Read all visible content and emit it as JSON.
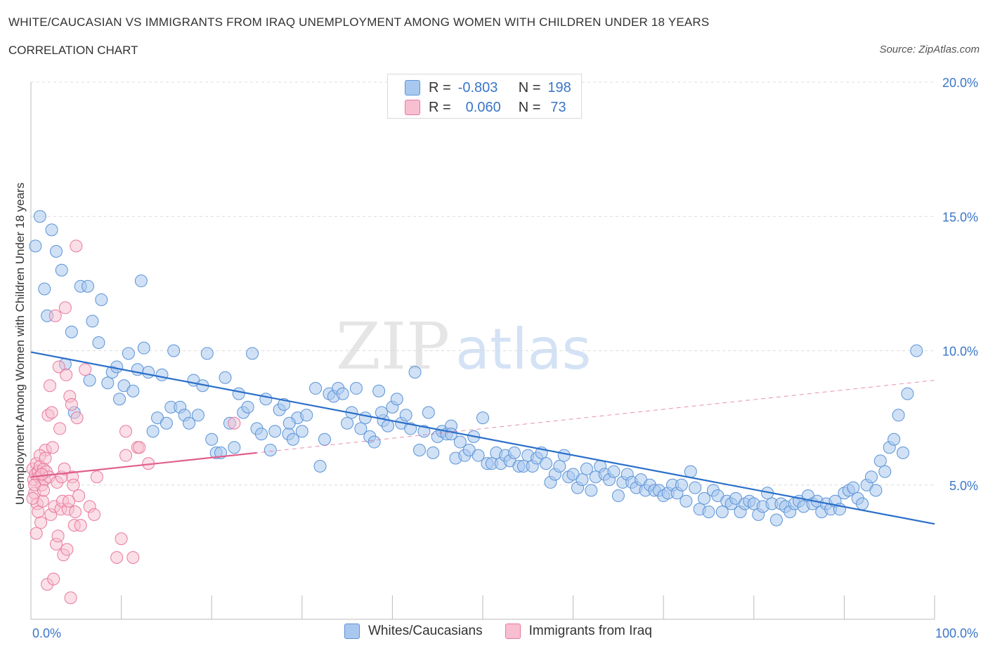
{
  "header": {
    "title": "WHITE/CAUCASIAN VS IMMIGRANTS FROM IRAQ UNEMPLOYMENT AMONG WOMEN WITH CHILDREN UNDER 18 YEARS",
    "subtitle": "CORRELATION CHART",
    "source": "Source: ZipAtlas.com"
  },
  "legend": {
    "rows": [
      {
        "r_label": "R =",
        "r_value": "-0.803",
        "n_label": "N =",
        "n_value": "198"
      },
      {
        "r_label": "R =",
        "r_value": "0.060",
        "n_label": "N =",
        "n_value": "73"
      }
    ]
  },
  "bottom_legend": {
    "items": [
      {
        "label": "Whites/Caucasians"
      },
      {
        "label": "Immigrants from Iraq"
      }
    ]
  },
  "watermark": {
    "zip": "ZIP",
    "atlas": "atlas"
  },
  "colors": {
    "blue_fill": "#a9c8ef",
    "blue_stroke": "#5b93d6",
    "blue_line": "#2a6fc9",
    "pink_fill": "#f7bfd0",
    "pink_stroke": "#e8789e",
    "pink_line": "#e0608d",
    "axis_text": "#3a76c9",
    "grid": "#dcdcdc"
  },
  "chart_data": {
    "type": "scatter",
    "ylabel": "Unemployment Among Women with Children Under 18 years",
    "xlim": [
      0,
      100
    ],
    "ylim": [
      0,
      20
    ],
    "x_tick_labels": [
      "0.0%",
      "100.0%"
    ],
    "y_ticks": [
      5,
      10,
      15,
      20
    ],
    "y_tick_labels": [
      "5.0%",
      "10.0%",
      "15.0%",
      "20.0%"
    ],
    "grid": "horizontal dashed",
    "series": [
      {
        "name": "Whites/Caucasians",
        "trend": {
          "x": [
            0,
            100
          ],
          "y": [
            9.95,
            3.55
          ]
        },
        "points": [
          [
            0.5,
            13.9
          ],
          [
            1.0,
            15.0
          ],
          [
            1.5,
            12.3
          ],
          [
            1.8,
            11.3
          ],
          [
            2.3,
            14.5
          ],
          [
            2.8,
            13.7
          ],
          [
            3.4,
            13.0
          ],
          [
            3.8,
            9.5
          ],
          [
            4.5,
            10.7
          ],
          [
            4.8,
            7.7
          ],
          [
            5.5,
            12.4
          ],
          [
            6.3,
            12.4
          ],
          [
            6.5,
            8.9
          ],
          [
            6.8,
            11.1
          ],
          [
            7.5,
            10.3
          ],
          [
            7.8,
            11.9
          ],
          [
            8.5,
            8.8
          ],
          [
            9.0,
            9.2
          ],
          [
            9.5,
            9.4
          ],
          [
            9.8,
            8.2
          ],
          [
            10.3,
            8.7
          ],
          [
            10.8,
            9.9
          ],
          [
            11.3,
            8.5
          ],
          [
            11.8,
            9.3
          ],
          [
            12.2,
            12.6
          ],
          [
            12.5,
            10.1
          ],
          [
            13.0,
            9.2
          ],
          [
            13.5,
            7.0
          ],
          [
            14.0,
            7.5
          ],
          [
            14.5,
            9.1
          ],
          [
            15.0,
            7.3
          ],
          [
            15.5,
            7.9
          ],
          [
            15.8,
            10.0
          ],
          [
            16.5,
            7.9
          ],
          [
            17.0,
            7.6
          ],
          [
            17.5,
            7.3
          ],
          [
            18.0,
            8.9
          ],
          [
            18.5,
            7.6
          ],
          [
            19.0,
            8.7
          ],
          [
            19.5,
            9.9
          ],
          [
            20.0,
            6.7
          ],
          [
            20.5,
            6.2
          ],
          [
            21.0,
            6.2
          ],
          [
            21.5,
            9.0
          ],
          [
            22.0,
            7.3
          ],
          [
            22.5,
            6.4
          ],
          [
            23.0,
            8.4
          ],
          [
            23.5,
            7.7
          ],
          [
            24.0,
            7.9
          ],
          [
            24.5,
            9.9
          ],
          [
            25.0,
            7.1
          ],
          [
            25.5,
            6.9
          ],
          [
            26.0,
            8.2
          ],
          [
            26.5,
            6.3
          ],
          [
            27.0,
            7.0
          ],
          [
            27.5,
            7.8
          ],
          [
            28.0,
            8.0
          ],
          [
            28.5,
            6.9
          ],
          [
            29.0,
            6.7
          ],
          [
            29.5,
            7.5
          ],
          [
            30.0,
            7.0
          ],
          [
            30.5,
            7.6
          ],
          [
            31.5,
            8.6
          ],
          [
            32.0,
            5.7
          ],
          [
            32.5,
            6.7
          ],
          [
            33.0,
            8.4
          ],
          [
            33.5,
            8.3
          ],
          [
            34.0,
            8.6
          ],
          [
            34.5,
            8.4
          ],
          [
            35.0,
            7.3
          ],
          [
            35.5,
            7.7
          ],
          [
            36.0,
            8.6
          ],
          [
            36.5,
            7.1
          ],
          [
            37.0,
            7.5
          ],
          [
            37.5,
            6.8
          ],
          [
            38.0,
            6.6
          ],
          [
            38.5,
            8.5
          ],
          [
            39.0,
            7.4
          ],
          [
            39.5,
            7.2
          ],
          [
            40.0,
            7.9
          ],
          [
            40.5,
            8.2
          ],
          [
            41.0,
            7.3
          ],
          [
            41.5,
            7.6
          ],
          [
            42.0,
            7.1
          ],
          [
            42.5,
            9.2
          ],
          [
            43.0,
            6.3
          ],
          [
            43.5,
            7.0
          ],
          [
            44.0,
            7.7
          ],
          [
            44.5,
            6.2
          ],
          [
            45.0,
            6.8
          ],
          [
            45.5,
            7.0
          ],
          [
            46.0,
            6.9
          ],
          [
            46.5,
            7.2
          ],
          [
            47.0,
            6.0
          ],
          [
            47.5,
            6.6
          ],
          [
            48.0,
            6.1
          ],
          [
            48.5,
            6.3
          ],
          [
            49.0,
            6.8
          ],
          [
            49.5,
            6.1
          ],
          [
            50.0,
            7.5
          ],
          [
            50.5,
            5.8
          ],
          [
            51.0,
            5.8
          ],
          [
            51.5,
            6.2
          ],
          [
            52.0,
            5.8
          ],
          [
            52.5,
            6.1
          ],
          [
            53.0,
            5.9
          ],
          [
            53.5,
            6.2
          ],
          [
            54.0,
            5.7
          ],
          [
            54.5,
            5.7
          ],
          [
            55.0,
            6.1
          ],
          [
            55.5,
            5.7
          ],
          [
            56.0,
            6.0
          ],
          [
            56.5,
            6.2
          ],
          [
            57.0,
            5.8
          ],
          [
            57.5,
            5.1
          ],
          [
            58.0,
            5.4
          ],
          [
            58.5,
            5.7
          ],
          [
            59.0,
            6.1
          ],
          [
            59.5,
            5.3
          ],
          [
            60.0,
            5.4
          ],
          [
            60.5,
            4.9
          ],
          [
            61.0,
            5.2
          ],
          [
            61.5,
            5.6
          ],
          [
            62.0,
            4.8
          ],
          [
            62.5,
            5.3
          ],
          [
            63.0,
            5.7
          ],
          [
            63.5,
            5.4
          ],
          [
            64.0,
            5.2
          ],
          [
            64.5,
            5.5
          ],
          [
            65.0,
            4.6
          ],
          [
            65.5,
            5.1
          ],
          [
            66.0,
            5.4
          ],
          [
            66.5,
            5.1
          ],
          [
            67.0,
            4.9
          ],
          [
            67.5,
            5.2
          ],
          [
            68.0,
            4.8
          ],
          [
            68.5,
            5.0
          ],
          [
            69.0,
            4.8
          ],
          [
            69.5,
            4.8
          ],
          [
            70.0,
            4.6
          ],
          [
            70.5,
            4.7
          ],
          [
            71.0,
            5.0
          ],
          [
            71.5,
            4.7
          ],
          [
            72.0,
            5.0
          ],
          [
            72.5,
            4.4
          ],
          [
            73.0,
            5.5
          ],
          [
            73.5,
            4.9
          ],
          [
            74.0,
            4.1
          ],
          [
            74.5,
            4.5
          ],
          [
            75.0,
            4.0
          ],
          [
            75.5,
            4.8
          ],
          [
            76.0,
            4.6
          ],
          [
            76.5,
            4.0
          ],
          [
            77.0,
            4.4
          ],
          [
            77.5,
            4.3
          ],
          [
            78.0,
            4.5
          ],
          [
            78.5,
            4.0
          ],
          [
            79.0,
            4.3
          ],
          [
            79.5,
            4.4
          ],
          [
            80.0,
            4.3
          ],
          [
            80.5,
            3.9
          ],
          [
            81.0,
            4.2
          ],
          [
            81.5,
            4.7
          ],
          [
            82.0,
            4.3
          ],
          [
            82.5,
            3.7
          ],
          [
            83.0,
            4.3
          ],
          [
            83.5,
            4.2
          ],
          [
            84.0,
            4.0
          ],
          [
            84.5,
            4.3
          ],
          [
            85.0,
            4.4
          ],
          [
            85.5,
            4.2
          ],
          [
            86.0,
            4.6
          ],
          [
            86.5,
            4.3
          ],
          [
            87.0,
            4.4
          ],
          [
            87.5,
            4.0
          ],
          [
            88.0,
            4.3
          ],
          [
            88.5,
            4.1
          ],
          [
            89.0,
            4.4
          ],
          [
            89.5,
            4.1
          ],
          [
            90.0,
            4.7
          ],
          [
            90.5,
            4.8
          ],
          [
            91.0,
            4.9
          ],
          [
            91.5,
            4.5
          ],
          [
            92.0,
            4.3
          ],
          [
            92.5,
            5.0
          ],
          [
            93.0,
            5.3
          ],
          [
            93.5,
            4.8
          ],
          [
            94.0,
            5.9
          ],
          [
            94.5,
            5.5
          ],
          [
            95.0,
            6.4
          ],
          [
            95.5,
            6.7
          ],
          [
            96.0,
            7.6
          ],
          [
            96.5,
            6.2
          ],
          [
            97.0,
            8.4
          ],
          [
            98.0,
            10.0
          ],
          [
            46.5,
            6.9
          ],
          [
            38.8,
            7.7
          ],
          [
            28.6,
            7.3
          ]
        ]
      },
      {
        "name": "Immigrants from Iraq",
        "trend": {
          "x": [
            0,
            25
          ],
          "y": [
            5.3,
            6.2
          ]
        },
        "trend_extended": {
          "x": [
            0,
            100
          ],
          "y": [
            5.3,
            8.9
          ]
        },
        "points": [
          [
            0.2,
            5.6
          ],
          [
            0.3,
            5.2
          ],
          [
            0.4,
            4.7
          ],
          [
            0.5,
            5.4
          ],
          [
            0.6,
            5.8
          ],
          [
            0.7,
            4.3
          ],
          [
            0.8,
            5.5
          ],
          [
            0.9,
            5.3
          ],
          [
            1.0,
            5.7
          ],
          [
            1.1,
            3.6
          ],
          [
            1.2,
            5.0
          ],
          [
            1.3,
            4.4
          ],
          [
            1.4,
            5.6
          ],
          [
            1.5,
            5.2
          ],
          [
            1.6,
            6.3
          ],
          [
            1.7,
            5.5
          ],
          [
            1.8,
            1.3
          ],
          [
            1.9,
            7.6
          ],
          [
            2.0,
            5.3
          ],
          [
            2.1,
            8.7
          ],
          [
            2.2,
            3.9
          ],
          [
            2.3,
            7.7
          ],
          [
            2.4,
            6.4
          ],
          [
            2.5,
            1.5
          ],
          [
            2.6,
            4.2
          ],
          [
            2.7,
            11.3
          ],
          [
            2.8,
            2.8
          ],
          [
            2.9,
            5.1
          ],
          [
            3.0,
            3.1
          ],
          [
            3.1,
            9.4
          ],
          [
            3.2,
            7.1
          ],
          [
            3.3,
            4.1
          ],
          [
            3.4,
            5.3
          ],
          [
            3.5,
            4.4
          ],
          [
            3.6,
            2.4
          ],
          [
            3.7,
            5.6
          ],
          [
            3.8,
            11.6
          ],
          [
            3.9,
            9.1
          ],
          [
            4.0,
            2.6
          ],
          [
            4.1,
            4.1
          ],
          [
            4.2,
            4.4
          ],
          [
            4.3,
            8.3
          ],
          [
            4.4,
            0.8
          ],
          [
            4.5,
            8.0
          ],
          [
            4.6,
            5.3
          ],
          [
            4.7,
            5.0
          ],
          [
            4.8,
            3.5
          ],
          [
            4.9,
            4.0
          ],
          [
            5.0,
            13.9
          ],
          [
            5.1,
            7.5
          ],
          [
            5.3,
            4.6
          ],
          [
            5.5,
            3.5
          ],
          [
            6.0,
            9.3
          ],
          [
            6.5,
            4.2
          ],
          [
            7.0,
            3.9
          ],
          [
            7.3,
            5.3
          ],
          [
            9.5,
            2.3
          ],
          [
            10.0,
            3.0
          ],
          [
            10.5,
            7.0
          ],
          [
            10.5,
            6.1
          ],
          [
            11.3,
            2.3
          ],
          [
            11.8,
            6.4
          ],
          [
            12.0,
            6.4
          ],
          [
            13.0,
            5.8
          ],
          [
            22.5,
            7.3
          ],
          [
            0.2,
            4.5
          ],
          [
            0.4,
            5.0
          ],
          [
            0.6,
            3.2
          ],
          [
            0.8,
            4.0
          ],
          [
            1.0,
            6.1
          ],
          [
            1.2,
            5.4
          ],
          [
            1.4,
            4.8
          ],
          [
            1.6,
            6.0
          ]
        ]
      }
    ]
  }
}
